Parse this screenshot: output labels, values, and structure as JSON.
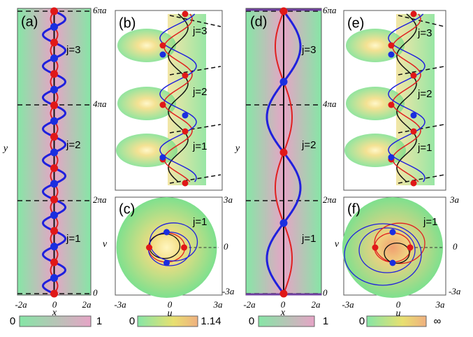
{
  "panels": [
    {
      "label": "(a)",
      "annotations": [
        "j=3",
        "j=2",
        "j=1"
      ],
      "x_ticks": [
        "-2a",
        "0",
        "2a"
      ],
      "y_ticks": [
        "6πa",
        "4πa",
        "2πa",
        "0"
      ],
      "x_label": "x",
      "y_label": "y",
      "colorbar_labels": [
        "0",
        "1"
      ]
    },
    {
      "label": "(b)",
      "annotations": [
        "j=3",
        "j=2",
        "j=1"
      ]
    },
    {
      "label": "(c)",
      "annotations": [
        "j=1"
      ],
      "x_ticks": [
        "-3a",
        "0",
        "3a"
      ],
      "y_ticks": [
        "3a",
        "0",
        "-3a"
      ],
      "x_label": "u",
      "y_label": "v",
      "colorbar_labels": [
        "0",
        "1.14"
      ]
    },
    {
      "label": "(d)",
      "annotations": [
        "j=3",
        "j=2",
        "j=1"
      ],
      "x_ticks": [
        "-2a",
        "0",
        "2a"
      ],
      "y_ticks": [
        "6πa",
        "4πa",
        "2πa",
        "0"
      ],
      "x_label": "x",
      "y_label": "y",
      "colorbar_labels": [
        "0",
        "1"
      ]
    },
    {
      "label": "(e)",
      "annotations": [
        "j=3",
        "j=2",
        "j=1"
      ]
    },
    {
      "label": "(f)",
      "annotations": [
        "j=1"
      ],
      "x_ticks": [
        "-3a",
        "0",
        "3a"
      ],
      "y_ticks": [
        "3a",
        "0",
        "-3a"
      ],
      "x_label": "u",
      "y_label": "v",
      "colorbar_labels": [
        "0",
        "∞"
      ]
    }
  ]
}
